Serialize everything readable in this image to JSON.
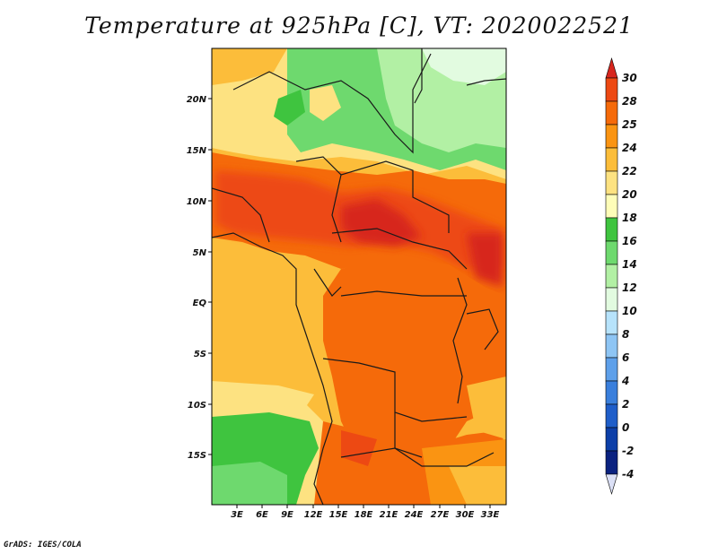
{
  "title": "Temperature at 925hPa [C], VT: 2020022521",
  "footer": "GrADS: IGES/COLA",
  "map": {
    "lat_labels": [
      "20N",
      "15N",
      "10N",
      "5N",
      "EQ",
      "5S",
      "10S",
      "15S"
    ],
    "lon_labels": [
      "3E",
      "6E",
      "9E",
      "12E",
      "15E",
      "18E",
      "21E",
      "24E",
      "27E",
      "30E",
      "33E"
    ]
  },
  "colorbar": {
    "levels": [
      "30",
      "28",
      "25",
      "24",
      "22",
      "20",
      "18",
      "16",
      "14",
      "12",
      "10",
      "8",
      "6",
      "4",
      "2",
      "0",
      "-2",
      "-4"
    ],
    "colors": {
      "above_28": "#d7261e",
      "c26": "#ed4913",
      "c25": "#f56a0a",
      "c24": "#fa9412",
      "c22": "#fcbd3a",
      "c20": "#fde281",
      "c18": "#fefdb8",
      "c16": "#3fc43f",
      "c14": "#6ed96e",
      "c12": "#b2f0a4",
      "c10": "#e2fbe0",
      "c8": "#b7e3fb",
      "c6": "#8ec5f4",
      "c4": "#5ea0ea",
      "c2": "#3a7fdc",
      "c0": "#1f5ec9",
      "cm2": "#0d3fa8",
      "cm4": "#0b2280",
      "below": "#060c52",
      "lowcap": "#dbe0f6"
    }
  }
}
